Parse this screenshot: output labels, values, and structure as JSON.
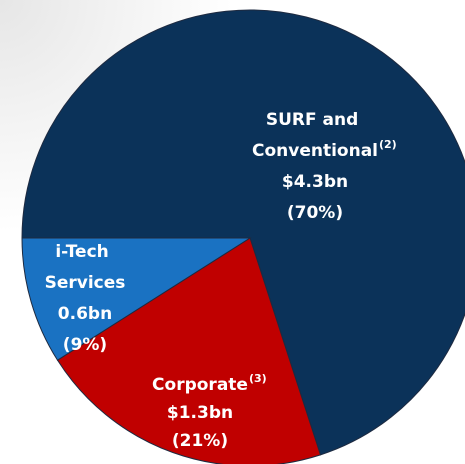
{
  "chart_data": {
    "type": "pie",
    "categories": [
      "SURF and Conventional",
      "Corporate",
      "i-Tech Services"
    ],
    "footnotes": [
      "(2)",
      "(3)",
      null
    ],
    "amounts": [
      "$4.3bn",
      "$1.3bn",
      "0.6bn"
    ],
    "values": [
      70,
      21,
      9
    ],
    "value_labels": [
      "(70%)",
      "(21%)",
      "(9%)"
    ],
    "colors": [
      "#0b3259",
      "#c00000",
      "#1a72c2"
    ],
    "start_angle": 270
  }
}
